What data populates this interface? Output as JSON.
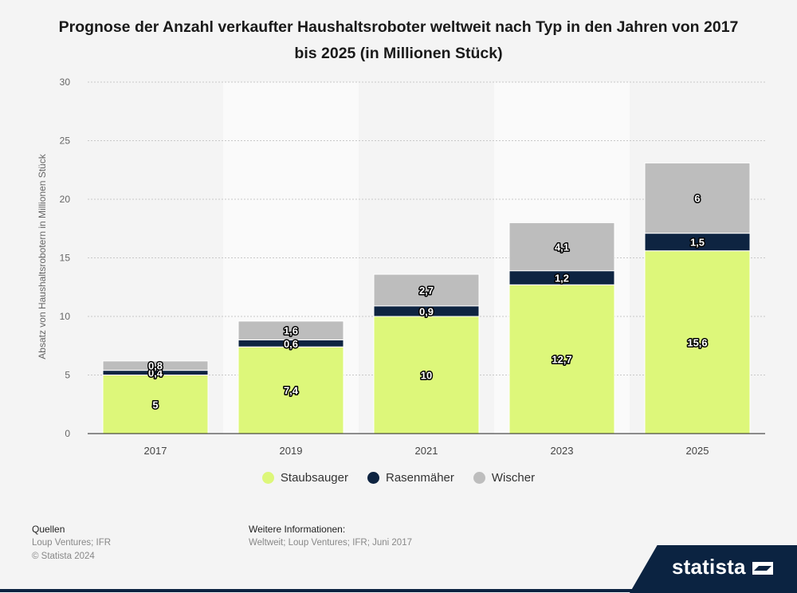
{
  "title": "Prognose der Anzahl verkaufter Haushaltsroboter weltweit nach Typ in den Jahren von 2017 bis 2025 (in Millionen Stück)",
  "chart_data": {
    "type": "bar",
    "stacked": true,
    "title": "Prognose der Anzahl verkaufter Haushaltsroboter weltweit nach Typ in den Jahren von 2017 bis 2025 (in Millionen Stück)",
    "xlabel": "",
    "ylabel": "Absatz von Haushaltsrobotern in Millionen Stück",
    "ylim": [
      0,
      30
    ],
    "yticks": [
      0,
      5,
      10,
      15,
      20,
      25,
      30
    ],
    "grid": true,
    "legend_position": "bottom",
    "categories": [
      "2017",
      "2019",
      "2021",
      "2023",
      "2025"
    ],
    "series": [
      {
        "name": "Staubsauger",
        "color": "#ddf77a",
        "values": [
          5,
          7.4,
          10,
          12.7,
          15.6
        ],
        "labels": [
          "5",
          "7,4",
          "10",
          "12,7",
          "15,6"
        ]
      },
      {
        "name": "Rasenmäher",
        "color": "#0e2441",
        "values": [
          0.4,
          0.6,
          0.9,
          1.2,
          1.5
        ],
        "labels": [
          "0,4",
          "0,6",
          "0,9",
          "1,2",
          "1,5"
        ]
      },
      {
        "name": "Wischer",
        "color": "#bdbdbd",
        "values": [
          0.8,
          1.6,
          2.7,
          4.1,
          6
        ],
        "labels": [
          "0,8",
          "1,6",
          "2,7",
          "4,1",
          "6"
        ]
      }
    ]
  },
  "footer": {
    "sources_heading": "Quellen",
    "sources_text": "Loup Ventures; IFR",
    "copyright": "© Statista 2024",
    "info_heading": "Weitere Informationen:",
    "info_text": "Weltweit; Loup Ventures; IFR; Juni 2017"
  },
  "brand": "statista"
}
